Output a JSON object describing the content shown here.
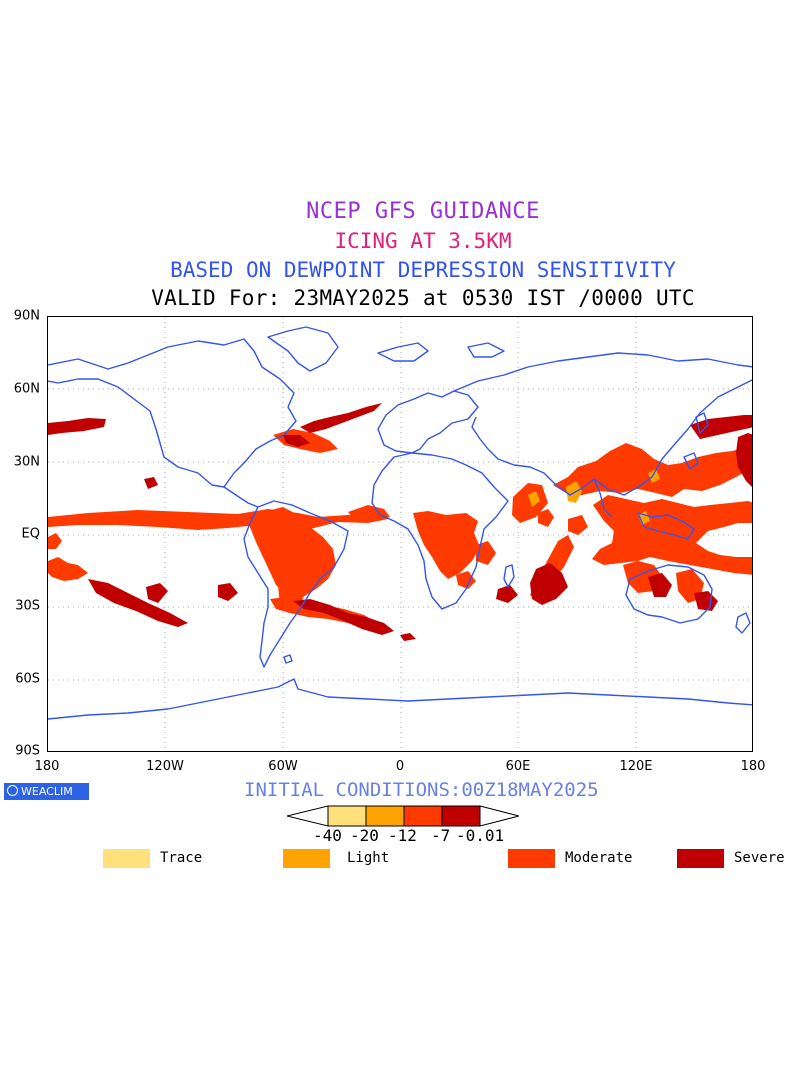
{
  "titles": {
    "line1": "NCEP GFS GUIDANCE",
    "line2": "ICING AT 3.5KM",
    "line3": "BASED ON DEWPOINT DEPRESSION SENSITIVITY",
    "line4": "VALID For: 23MAY2025 at 0530 IST /0000 UTC"
  },
  "axes": {
    "lat_labels": [
      "90N",
      "60N",
      "30N",
      "EQ",
      "30S",
      "60S",
      "90S"
    ],
    "lon_labels": [
      "180",
      "120W",
      "60W",
      "0",
      "60E",
      "120E",
      "180"
    ]
  },
  "init_conditions": "INITIAL CONDITIONS:00Z18MAY2025",
  "brand": "WEACLIM",
  "colorbar": {
    "ticks": [
      "-40",
      "-20",
      "-12",
      "-7",
      "-0.01"
    ],
    "colors": [
      "#ffe07a",
      "#ffa300",
      "#ff3a00",
      "#c00000"
    ]
  },
  "legend": [
    {
      "label": "Trace",
      "color": "#ffe07a"
    },
    {
      "label": "Light",
      "color": "#ffa300"
    },
    {
      "label": "Moderate",
      "color": "#ff3a00"
    },
    {
      "label": "Severe",
      "color": "#c00000"
    }
  ],
  "colors": {
    "coastline": "#3355ee",
    "gridline": "#aaaaaa",
    "moderate": "#ff3a00",
    "severe": "#c00000",
    "light": "#ffa300"
  }
}
